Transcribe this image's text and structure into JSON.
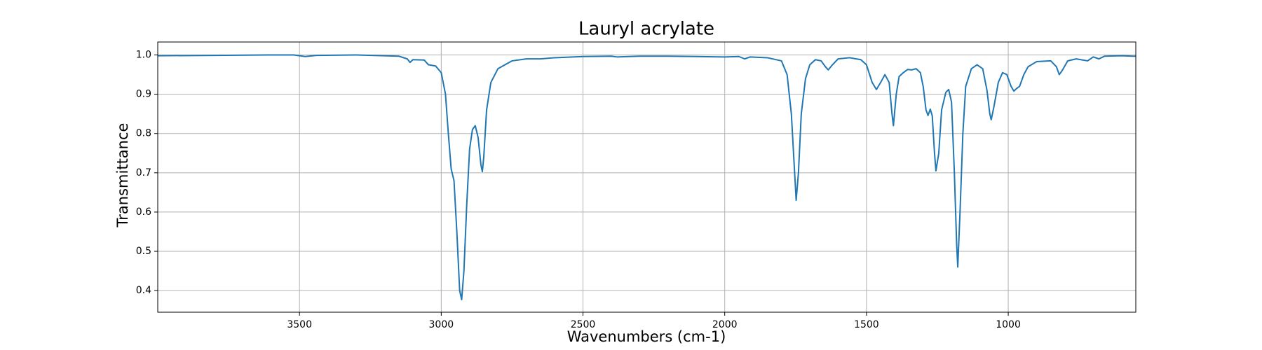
{
  "chart_data": {
    "type": "line",
    "title": "Lauryl acrylate",
    "x_label": "Wavenumbers (cm-1)",
    "y_label": "Transmittance",
    "color": "#1f77b4",
    "grid": true,
    "xlim": [
      4000,
      550
    ],
    "ylim": [
      0.345,
      1.033
    ],
    "xticks": [
      3500,
      3000,
      2500,
      2000,
      1500,
      1000
    ],
    "yticks": [
      0.4,
      0.5,
      0.6,
      0.7,
      0.8,
      0.9,
      {
        "value": 1,
        "label": "1.0"
      }
    ],
    "x": [
      4000,
      3800,
      3600,
      3520,
      3480,
      3440,
      3300,
      3150,
      3120,
      3110,
      3100,
      3060,
      3045,
      3020,
      3000,
      2985,
      2975,
      2965,
      2955,
      2945,
      2935,
      2928,
      2920,
      2910,
      2900,
      2890,
      2880,
      2870,
      2860,
      2855,
      2850,
      2840,
      2825,
      2800,
      2750,
      2700,
      2650,
      2600,
      2500,
      2400,
      2380,
      2300,
      2200,
      2100,
      2000,
      1950,
      1930,
      1910,
      1850,
      1800,
      1780,
      1765,
      1755,
      1748,
      1740,
      1730,
      1715,
      1700,
      1680,
      1660,
      1645,
      1635,
      1620,
      1600,
      1560,
      1520,
      1500,
      1480,
      1465,
      1450,
      1435,
      1420,
      1410,
      1405,
      1395,
      1385,
      1370,
      1355,
      1340,
      1325,
      1310,
      1300,
      1290,
      1283,
      1275,
      1268,
      1260,
      1255,
      1245,
      1235,
      1220,
      1210,
      1200,
      1190,
      1182,
      1178,
      1170,
      1160,
      1150,
      1130,
      1110,
      1090,
      1075,
      1065,
      1060,
      1050,
      1035,
      1020,
      1005,
      990,
      980,
      970,
      960,
      945,
      930,
      900,
      850,
      830,
      820,
      810,
      790,
      760,
      720,
      700,
      680,
      660,
      600,
      560,
      550
    ],
    "values": [
      0.998,
      0.999,
      1.0,
      1.0,
      0.996,
      0.999,
      1.0,
      0.997,
      0.99,
      0.981,
      0.988,
      0.987,
      0.975,
      0.972,
      0.955,
      0.9,
      0.8,
      0.71,
      0.68,
      0.55,
      0.4,
      0.377,
      0.45,
      0.62,
      0.76,
      0.81,
      0.82,
      0.79,
      0.72,
      0.703,
      0.74,
      0.86,
      0.93,
      0.965,
      0.985,
      0.99,
      0.99,
      0.993,
      0.996,
      0.997,
      0.995,
      0.997,
      0.997,
      0.996,
      0.995,
      0.996,
      0.99,
      0.995,
      0.993,
      0.985,
      0.95,
      0.85,
      0.72,
      0.63,
      0.7,
      0.85,
      0.94,
      0.975,
      0.988,
      0.985,
      0.97,
      0.962,
      0.975,
      0.99,
      0.993,
      0.988,
      0.975,
      0.93,
      0.912,
      0.93,
      0.95,
      0.93,
      0.85,
      0.82,
      0.9,
      0.945,
      0.955,
      0.963,
      0.962,
      0.965,
      0.955,
      0.92,
      0.86,
      0.846,
      0.862,
      0.845,
      0.75,
      0.705,
      0.75,
      0.86,
      0.905,
      0.912,
      0.88,
      0.7,
      0.52,
      0.46,
      0.6,
      0.8,
      0.92,
      0.965,
      0.975,
      0.965,
      0.91,
      0.85,
      0.835,
      0.87,
      0.93,
      0.955,
      0.95,
      0.92,
      0.908,
      0.915,
      0.92,
      0.95,
      0.97,
      0.983,
      0.985,
      0.97,
      0.95,
      0.96,
      0.985,
      0.99,
      0.985,
      0.995,
      0.99,
      0.997,
      0.998,
      0.997,
      0.997
    ]
  }
}
